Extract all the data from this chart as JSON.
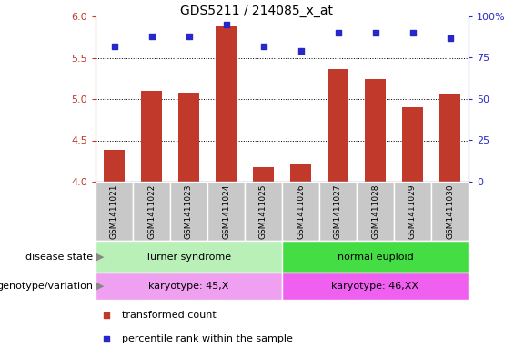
{
  "title": "GDS5211 / 214085_x_at",
  "samples": [
    "GSM1411021",
    "GSM1411022",
    "GSM1411023",
    "GSM1411024",
    "GSM1411025",
    "GSM1411026",
    "GSM1411027",
    "GSM1411028",
    "GSM1411029",
    "GSM1411030"
  ],
  "bar_values": [
    4.38,
    5.1,
    5.08,
    5.88,
    4.18,
    4.22,
    5.36,
    5.24,
    4.9,
    5.06
  ],
  "scatter_values": [
    82,
    88,
    88,
    95,
    82,
    79,
    90,
    90,
    90,
    87
  ],
  "bar_color": "#c0392b",
  "scatter_color": "#2828c8",
  "ylim_left": [
    4.0,
    6.0
  ],
  "ylim_right": [
    0,
    100
  ],
  "yticks_left": [
    4.0,
    4.5,
    5.0,
    5.5,
    6.0
  ],
  "yticks_right": [
    0,
    25,
    50,
    75,
    100
  ],
  "ytick_labels_right": [
    "0",
    "25",
    "50",
    "75",
    "100%"
  ],
  "grid_values": [
    4.5,
    5.0,
    5.5
  ],
  "disease_state_groups": [
    {
      "label": "Turner syndrome",
      "start": 0,
      "end": 4,
      "color": "#b8f0b8"
    },
    {
      "label": "normal euploid",
      "start": 5,
      "end": 9,
      "color": "#44dd44"
    }
  ],
  "genotype_groups": [
    {
      "label": "karyotype: 45,X",
      "start": 0,
      "end": 4,
      "color": "#f0a0f0"
    },
    {
      "label": "karyotype: 46,XX",
      "start": 5,
      "end": 9,
      "color": "#f060f0"
    }
  ],
  "disease_state_label": "disease state",
  "genotype_label": "genotype/variation",
  "legend_bar_label": "transformed count",
  "legend_scatter_label": "percentile rank within the sample",
  "background_color": "#ffffff",
  "sample_box_color": "#c8c8c8",
  "bar_width": 0.55
}
